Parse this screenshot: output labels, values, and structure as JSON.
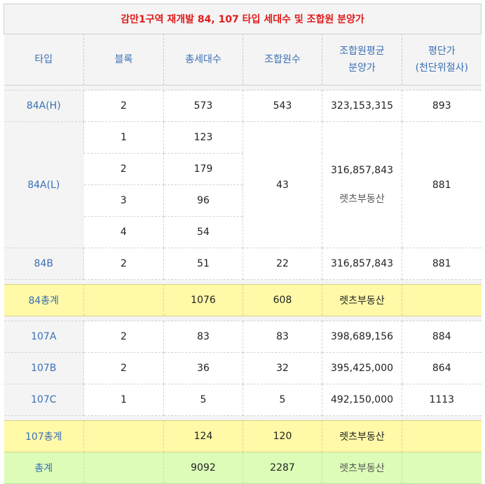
{
  "title": "감만1구역 재개발 84, 107 타입 세대수 및 조합원 분양가",
  "headers": {
    "type": "타입",
    "block": "블록",
    "total_units": "총세대수",
    "members": "조합원수",
    "avg_price_line1": "조합원평균",
    "avg_price_line2": "분양가",
    "per_pyeong_line1": "평단가",
    "per_pyeong_line2": "(천단위절사)"
  },
  "rows": {
    "r84AH": {
      "type": "84A(H)",
      "block": "2",
      "units": "573",
      "members": "543",
      "price": "323,153,315",
      "pyeong": "893"
    },
    "r84AL": {
      "type": "84A(L)",
      "blocks": [
        "1",
        "2",
        "3",
        "4"
      ],
      "units": [
        "123",
        "179",
        "96",
        "54"
      ],
      "members": "43",
      "price": "316,857,843",
      "watermark": "렛츠부동산",
      "pyeong": "881"
    },
    "r84B": {
      "type": "84B",
      "block": "2",
      "units": "51",
      "members": "22",
      "price": "316,857,843",
      "pyeong": "881"
    },
    "sum84": {
      "label": "84총계",
      "units": "1076",
      "members": "608",
      "note": "렛츠부동산"
    },
    "r107A": {
      "type": "107A",
      "block": "2",
      "units": "83",
      "members": "83",
      "price": "398,689,156",
      "pyeong": "884"
    },
    "r107B": {
      "type": "107B",
      "block": "2",
      "units": "36",
      "members": "32",
      "price": "395,425,000",
      "pyeong": "864"
    },
    "r107C": {
      "type": "107C",
      "block": "1",
      "units": "5",
      "members": "5",
      "price": "492,150,000",
      "pyeong": "1113"
    },
    "sum107": {
      "label": "107총계",
      "units": "124",
      "members": "120",
      "note": "렛츠부동산"
    },
    "total": {
      "label": "총계",
      "units": "9092",
      "members": "2287",
      "note": "렛츠부동산"
    }
  },
  "colors": {
    "title": "#e01b1b",
    "header_text": "#3a6fb5",
    "subtotal_bg": "#fff9a8",
    "total_bg": "#dcfcb8"
  }
}
